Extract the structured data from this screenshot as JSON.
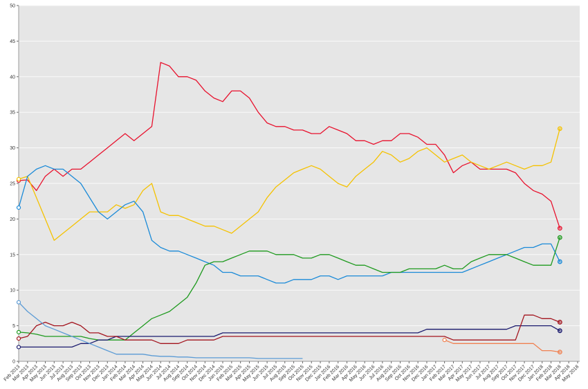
{
  "chart_data": {
    "type": "line",
    "title": "",
    "xlabel": "",
    "ylabel": "",
    "ylim": [
      0,
      50
    ],
    "yticks": [
      0,
      5,
      10,
      15,
      20,
      25,
      30,
      35,
      40,
      45,
      50
    ],
    "grid": true,
    "legend": "none",
    "xtick_labels": [
      "Feb 2013",
      "Mar 2013",
      "Apr 2013",
      "May 2013",
      "Jun 2013",
      "Jul 2013",
      "Aug 2013",
      "Sep 2013",
      "Oct 2013",
      "Nov 2013",
      "Dec 2013",
      "Jan 2014",
      "Feb 2014",
      "Mar 2014",
      "Apr 2014",
      "May 2014",
      "Jun 2014",
      "Jul 2014",
      "Aug 2014",
      "Sep 2014",
      "Oct 2014",
      "Nov 2014",
      "Dec 2014",
      "Jan 2015",
      "Feb 2015",
      "Mar 2015",
      "Apr 2015",
      "May 2015",
      "Jun 2015",
      "Jul 2015",
      "Aug 2015",
      "Sep 2015",
      "Oct 2015",
      "Nov 2015",
      "Dec 2015",
      "Jan 2016",
      "Feb 2016",
      "Mar 2016",
      "Apr 2016",
      "May 2016",
      "Jun 2016",
      "Jul 2016",
      "Aug 2016",
      "Sep 2016",
      "Oct 2016",
      "Nov 2016",
      "Dec 2016",
      "Jan 2017",
      "Feb 2017",
      "Mar 2017",
      "Apr 2017",
      "May 2017",
      "Jun 2017",
      "Jul 2017",
      "Aug 2017",
      "Sep 2017",
      "Oct 2017",
      "Nov 2017",
      "Dec 2017",
      "Jan 2018",
      "Feb 2018",
      "Mar 2018",
      "Apr 2018",
      "May 2018"
    ],
    "series": [
      {
        "color": "#e8112d",
        "values": [
          25.4,
          25.5,
          24,
          26,
          27,
          26,
          27,
          27,
          28,
          29,
          30,
          31,
          32,
          31,
          32,
          33,
          42,
          41.5,
          40,
          40,
          39.5,
          38,
          37,
          36.5,
          38,
          38,
          37,
          35,
          33.5,
          33,
          33,
          32.5,
          32.5,
          32,
          32,
          33,
          32.5,
          32,
          31,
          31,
          30.5,
          31,
          31,
          32,
          32,
          31.5,
          30.5,
          30.5,
          29,
          26.5,
          27.5,
          28,
          27,
          27,
          27,
          27,
          26.5,
          25,
          24,
          23.5,
          22.5,
          18.7
        ]
      },
      {
        "color": "#f5c200",
        "values": [
          25.6,
          26,
          23,
          20,
          17,
          18,
          19,
          20,
          21,
          21,
          21,
          22,
          21.5,
          22,
          24,
          25,
          21,
          20.5,
          20.5,
          20,
          19.5,
          19,
          19,
          18.5,
          18,
          19,
          20,
          21,
          23,
          24.5,
          25.5,
          26.5,
          27,
          27.5,
          27,
          26,
          25,
          24.5,
          26,
          27,
          28,
          29.5,
          29,
          28,
          28.5,
          29.5,
          30,
          29,
          28,
          28.5,
          29,
          28,
          27.5,
          27,
          27.5,
          28,
          27.5,
          27,
          27.5,
          27.5,
          28,
          32.7
        ]
      },
      {
        "color": "#1a8ad8",
        "values": [
          21.6,
          26,
          27,
          27.5,
          27,
          27,
          26,
          25,
          23,
          21,
          20,
          21,
          22,
          22.5,
          21,
          17,
          16,
          15.5,
          15.5,
          15,
          14.5,
          14,
          13.5,
          12.5,
          12.5,
          12,
          12,
          12,
          11.5,
          11,
          11,
          11.5,
          11.5,
          11.5,
          12,
          12,
          11.5,
          12,
          12,
          12,
          12,
          12,
          12.5,
          12.5,
          12.5,
          12.5,
          12.5,
          12.5,
          12.5,
          12.5,
          12.5,
          13,
          13.5,
          14,
          14.5,
          15,
          15.5,
          16,
          16,
          16.5,
          16.5,
          14.0
        ]
      },
      {
        "color": "#1e9a1e",
        "values": [
          4.1,
          4,
          3.8,
          3.5,
          3.5,
          3.5,
          3.5,
          3.5,
          3.2,
          3,
          3,
          3,
          3,
          4,
          5,
          6,
          6.5,
          7,
          8,
          9,
          11,
          13.5,
          14,
          14,
          14.5,
          15,
          15.5,
          15.5,
          15.5,
          15,
          15,
          15,
          14.5,
          14.5,
          15,
          15,
          14.5,
          14,
          13.5,
          13.5,
          13,
          12.5,
          12.5,
          12.5,
          13,
          13,
          13,
          13,
          13.5,
          13,
          13,
          14,
          14.5,
          15,
          15,
          15,
          14.5,
          14,
          13.5,
          13.5,
          13.5,
          17.4
        ]
      },
      {
        "color": "#1a1a6e",
        "values": [
          2,
          2,
          2,
          2,
          2,
          2,
          2,
          2.5,
          2.5,
          3,
          3,
          3.5,
          3.5,
          3.5,
          3.5,
          3.5,
          3.5,
          3.5,
          3.5,
          3.5,
          3.5,
          3.5,
          3.5,
          4,
          4,
          4,
          4,
          4,
          4,
          4,
          4,
          4,
          4,
          4,
          4,
          4,
          4,
          4,
          4,
          4,
          4,
          4,
          4,
          4,
          4,
          4,
          4.5,
          4.5,
          4.5,
          4.5,
          4.5,
          4.5,
          4.5,
          4.5,
          4.5,
          4.5,
          5,
          5,
          5,
          5,
          5,
          4.3
        ]
      },
      {
        "color": "#a3141e",
        "values": [
          3.2,
          3.5,
          5,
          5.5,
          5,
          5,
          5.5,
          5,
          4,
          4,
          3.5,
          3.5,
          3,
          3,
          3,
          3,
          2.5,
          2.5,
          2.5,
          3,
          3,
          3,
          3,
          3.5,
          3.5,
          3.5,
          3.5,
          3.5,
          3.5,
          3.5,
          3.5,
          3.5,
          3.5,
          3.5,
          3.5,
          3.5,
          3.5,
          3.5,
          3.5,
          3.5,
          3.5,
          3.5,
          3.5,
          3.5,
          3.5,
          3.5,
          3.5,
          3.5,
          3.5,
          3,
          3,
          3,
          3,
          3,
          3,
          3,
          3,
          6.5,
          6.5,
          6,
          6,
          5.5
        ]
      },
      {
        "color": "#5b9bd5",
        "values": [
          8.3,
          7,
          6,
          5,
          4.5,
          4,
          3.5,
          3,
          2.5,
          2,
          1.5,
          1,
          1,
          1,
          1,
          0.8,
          0.7,
          0.7,
          0.6,
          0.6,
          0.5,
          0.5,
          0.5,
          0.5,
          0.5,
          0.5,
          0.5,
          0.4,
          0.4,
          0.4,
          0.4,
          0.4,
          0.4
        ]
      },
      {
        "color": "#f08050",
        "values": [
          null,
          null,
          null,
          null,
          null,
          null,
          null,
          null,
          null,
          null,
          null,
          null,
          null,
          null,
          null,
          null,
          null,
          null,
          null,
          null,
          null,
          null,
          null,
          null,
          null,
          null,
          null,
          null,
          null,
          null,
          null,
          null,
          null,
          null,
          null,
          null,
          null,
          null,
          null,
          null,
          null,
          null,
          null,
          null,
          null,
          null,
          null,
          null,
          3,
          2.5,
          2.5,
          2.5,
          2.5,
          2.5,
          2.5,
          2.5,
          2.5,
          2.5,
          2.5,
          1.5,
          1.5,
          1.3
        ]
      }
    ]
  }
}
